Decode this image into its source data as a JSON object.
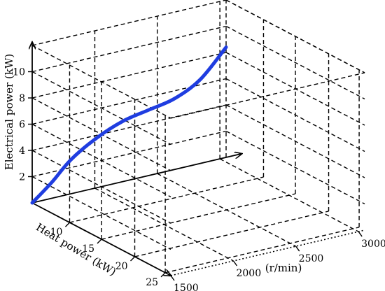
{
  "chart_data": {
    "type": "line",
    "projection": "3d",
    "title": "",
    "zlabel": "Electrical power (kW)",
    "ylabel": "Heat power (kW)",
    "xlabel": "(r/min)",
    "z_ticks": [
      "2",
      "4",
      "6",
      "8",
      "10"
    ],
    "y_ticks": [
      "10",
      "15",
      "20",
      "25"
    ],
    "x_ticks": [
      "1500",
      "2000",
      "2500",
      "3000"
    ],
    "grid": true,
    "series": [
      {
        "color": "#1f3de0",
        "points": [
          {
            "x": 1500,
            "z": 0.0
          },
          {
            "x": 1650,
            "z": 1.2
          },
          {
            "x": 1800,
            "z": 2.6
          },
          {
            "x": 2000,
            "z": 3.8
          },
          {
            "x": 2200,
            "z": 4.6
          },
          {
            "x": 2400,
            "z": 5.0
          },
          {
            "x": 2600,
            "z": 5.4
          },
          {
            "x": 2800,
            "z": 6.4
          },
          {
            "x": 3000,
            "z": 8.4
          }
        ]
      }
    ]
  }
}
